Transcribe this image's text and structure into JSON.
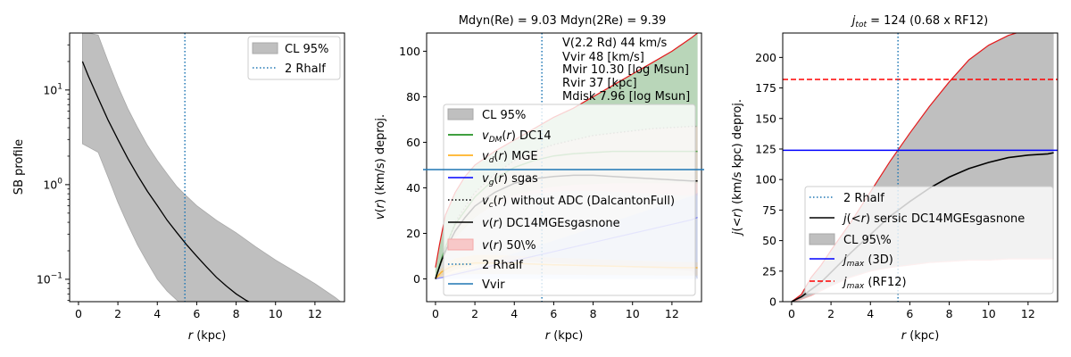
{
  "colors": {
    "ci_fill": "#bfbfbf",
    "ci_edge": "#a8a8a8",
    "rhalf": "#1f77b4",
    "dm": "#008000",
    "mge": "#ffa500",
    "gas": "#0000ff",
    "total": "#000000",
    "upper": "#e41a1c",
    "vvir": "#1f77b4",
    "jmax3d": "#0000ff",
    "jmaxrf": "#ff0000"
  },
  "chart_data": [
    {
      "type": "area",
      "title": "",
      "xlabel": "r (kpc)",
      "ylabel": "SB profile",
      "yscale": "log",
      "xlim": [
        -0.45,
        13.5
      ],
      "ylim": [
        0.058,
        40
      ],
      "xticks": [
        0,
        2,
        4,
        6,
        8,
        10,
        12
      ],
      "yticks": [
        {
          "value": 0.1,
          "label": "10^{-1}"
        },
        {
          "value": 1,
          "label": "10^{0}"
        },
        {
          "value": 10,
          "label": "10^{1}"
        }
      ],
      "rhalf_x": 5.4,
      "legend": {
        "position": "top-right",
        "entries": [
          {
            "label": "CL 95%",
            "kind": "patch"
          },
          {
            "label": "2 Rhalf",
            "kind": "dotted"
          }
        ]
      },
      "series": [
        {
          "name": "SB",
          "x": [
            0.2,
            0.5,
            1,
            1.5,
            2,
            2.5,
            3,
            3.5,
            4,
            4.5,
            5,
            5.5,
            6,
            6.5,
            7,
            7.5,
            8,
            8.5,
            8.8
          ],
          "values": [
            20,
            14,
            8.2,
            4.8,
            3.0,
            1.9,
            1.25,
            0.85,
            0.6,
            0.42,
            0.31,
            0.23,
            0.175,
            0.135,
            0.105,
            0.085,
            0.07,
            0.06,
            0.056
          ]
        }
      ],
      "band": {
        "x": [
          0.2,
          0.5,
          1,
          1.5,
          2,
          2.5,
          3,
          3.5,
          4,
          4.5,
          5,
          5.5,
          6,
          7,
          8,
          9,
          10,
          11,
          12,
          13,
          13.3
        ],
        "lower": [
          2.7,
          2.5,
          2.2,
          1.2,
          0.65,
          0.38,
          0.23,
          0.15,
          0.1,
          0.075,
          0.06,
          0.05,
          0.045,
          0.035,
          0.03,
          0.03,
          0.03,
          0.03,
          0.03,
          0.03,
          0.03
        ],
        "upper": [
          40,
          40,
          38,
          20,
          11,
          6.4,
          4.0,
          2.6,
          1.8,
          1.3,
          0.95,
          0.75,
          0.6,
          0.42,
          0.31,
          0.22,
          0.16,
          0.12,
          0.09,
          0.065,
          0.058
        ]
      }
    },
    {
      "type": "line",
      "title": "Mdyn(Re) = 9.03  Mdyn(2Re) = 9.39",
      "xlabel": "r (kpc)",
      "ylabel": "v(r) (km/s) deproj.",
      "xlim": [
        -0.45,
        13.5
      ],
      "ylim": [
        -10,
        108
      ],
      "xticks": [
        0,
        2,
        4,
        6,
        8,
        10,
        12
      ],
      "yticks": [
        0,
        20,
        40,
        60,
        80,
        100
      ],
      "rhalf_x": 5.4,
      "vvir": 48,
      "annotations": [
        "V(2.2 Rd) 44 km/s",
        "Vvir 48 [km/s]",
        "Mvir 10.30 [log Msun]",
        "Rvir 37 [kpc]",
        "Mdisk 7.96 [log Msun]"
      ],
      "legend": {
        "position": "lower-right",
        "entries": [
          {
            "label": "CL 95%",
            "kind": "patch"
          },
          {
            "label": "v_{DM}(r) DC14",
            "kind": "solid",
            "color": "#008000"
          },
          {
            "label": "v_{d}(r) MGE",
            "kind": "solid",
            "color": "#ffa500"
          },
          {
            "label": "v_{g}(r) sgas",
            "kind": "solid",
            "color": "#0000ff"
          },
          {
            "label": "v_{c}(r) without ADC (DalcantonFull)",
            "kind": "dotted",
            "color": "#000000"
          },
          {
            "label": "v(r) DC14MGEsgasnone",
            "kind": "solid",
            "color": "#000000"
          },
          {
            "label": "v(r) 50\\%",
            "kind": "patch-red"
          },
          {
            "label": "2 Rhalf",
            "kind": "dotted",
            "color": "#1f77b4"
          },
          {
            "label": "Vvir",
            "kind": "solid",
            "color": "#1f77b4"
          }
        ]
      },
      "series": [
        {
          "name": "v_total",
          "x": [
            0,
            0.3,
            0.7,
            1,
            1.5,
            2,
            3,
            4,
            5,
            6,
            7,
            8,
            9,
            10,
            11,
            12,
            13,
            13.3
          ],
          "values": [
            0,
            8,
            16,
            21,
            27,
            32,
            38,
            42,
            44,
            45,
            45.5,
            45.5,
            45,
            44.5,
            44,
            43.5,
            43,
            43
          ]
        },
        {
          "name": "v_dm",
          "x": [
            0,
            0.5,
            1,
            2,
            3,
            4,
            5,
            6,
            7,
            8,
            9,
            10,
            11,
            12,
            13,
            13.3
          ],
          "values": [
            0,
            14,
            24,
            36,
            44,
            49,
            52,
            54,
            55,
            55.5,
            56,
            56,
            56,
            56,
            56,
            56
          ]
        },
        {
          "name": "v_c_noadc",
          "x": [
            0,
            1,
            2,
            3,
            4,
            5,
            6,
            7,
            8,
            9,
            10,
            11,
            12,
            13,
            13.3
          ],
          "values": [
            0,
            25,
            38,
            46,
            52,
            56,
            59,
            61,
            63,
            64,
            65,
            66,
            66.5,
            67,
            67
          ]
        },
        {
          "name": "v_d_mge",
          "x": [
            0,
            0.3,
            0.7,
            1,
            1.5,
            2,
            3,
            4,
            5,
            6,
            7,
            8,
            9,
            10,
            11,
            12,
            13,
            13.3
          ],
          "values": [
            0,
            3,
            5,
            6,
            6.5,
            7,
            7,
            6.8,
            6.5,
            6.2,
            6,
            5.8,
            5.6,
            5.4,
            5.2,
            5,
            4.9,
            4.9
          ]
        },
        {
          "name": "v_g_sgas",
          "x": [
            0,
            1,
            2,
            3,
            4,
            5,
            6,
            7,
            8,
            9,
            10,
            11,
            12,
            13,
            13.3
          ],
          "values": [
            0,
            2,
            4,
            6,
            8,
            10,
            12,
            14,
            16,
            18,
            20,
            22,
            24,
            26,
            27
          ]
        },
        {
          "name": "v_upper",
          "x": [
            0,
            0.2,
            0.5,
            1,
            1.5,
            2,
            3,
            4,
            5,
            6,
            7,
            8,
            9,
            10,
            11,
            12,
            13,
            13.3
          ],
          "values": [
            5,
            15,
            28,
            38,
            45,
            50,
            56,
            61,
            66,
            71,
            75,
            80,
            85,
            90,
            95,
            100,
            106,
            108
          ]
        }
      ],
      "band": {
        "x": [
          0,
          0.5,
          1,
          2,
          3,
          4,
          5,
          6,
          7,
          8,
          9,
          10,
          11,
          12,
          13,
          13.3
        ],
        "lower": [
          0,
          2,
          4,
          6,
          7,
          7.5,
          7.5,
          7,
          6.5,
          6,
          5.5,
          5,
          4.5,
          4,
          3.5,
          0
        ],
        "upper": [
          5,
          28,
          38,
          50,
          56,
          61,
          66,
          71,
          75,
          80,
          85,
          90,
          95,
          100,
          106,
          108
        ]
      }
    },
    {
      "type": "line",
      "title": "j_tot = 124 (0.68 x RF12)",
      "xlabel": "r (kpc)",
      "ylabel": "j(<r) (km/s kpc) deproj.",
      "xlim": [
        -0.45,
        13.5
      ],
      "ylim": [
        0,
        220
      ],
      "xticks": [
        0,
        2,
        4,
        6,
        8,
        10,
        12
      ],
      "yticks": [
        0,
        25,
        50,
        75,
        100,
        125,
        150,
        175,
        200
      ],
      "rhalf_x": 5.4,
      "jmax_3d": 124,
      "jmax_rf12": 182,
      "legend": {
        "position": "lower-right",
        "entries": [
          {
            "label": "2 Rhalf",
            "kind": "dotted",
            "color": "#1f77b4"
          },
          {
            "label": "j(<r) sersic DC14MGEsgasnone",
            "kind": "solid",
            "color": "#000000"
          },
          {
            "label": "CL 95\\%",
            "kind": "patch"
          },
          {
            "label": "j_max (3D)",
            "kind": "solid",
            "color": "#0000ff"
          },
          {
            "label": "j_max (RF12)",
            "kind": "dashed",
            "color": "#ff0000"
          }
        ]
      },
      "series": [
        {
          "name": "j_median",
          "x": [
            0,
            0.5,
            1,
            1.5,
            2,
            3,
            4,
            5,
            6,
            7,
            8,
            9,
            10,
            11,
            12,
            13,
            13.3
          ],
          "values": [
            0,
            4,
            10,
            16,
            24,
            40,
            55,
            70,
            82,
            93,
            102,
            109,
            114,
            118,
            120,
            121,
            122
          ]
        },
        {
          "name": "j_upper",
          "x": [
            0,
            0.5,
            1,
            1.5,
            2,
            3,
            4,
            5,
            6,
            7,
            8,
            9,
            10,
            11,
            11.4
          ],
          "values": [
            0,
            6,
            20,
            30,
            42,
            65,
            90,
            115,
            138,
            160,
            180,
            198,
            210,
            218,
            220
          ]
        },
        {
          "name": "j_lower",
          "x": [
            0,
            0.5,
            1,
            1.5,
            2,
            3,
            4,
            5,
            6,
            7,
            8,
            9,
            10,
            11,
            12,
            13,
            13.3
          ],
          "values": [
            0,
            2,
            5,
            9,
            13,
            20,
            25,
            28,
            30,
            32,
            33,
            34,
            34,
            35,
            35,
            35,
            35
          ]
        }
      ],
      "band": {
        "x": [
          0,
          0.5,
          1,
          1.5,
          2,
          3,
          4,
          5,
          6,
          7,
          8,
          9,
          10,
          11,
          11.4,
          12,
          13,
          13.3
        ],
        "lower": [
          0,
          2,
          5,
          9,
          13,
          20,
          25,
          28,
          30,
          32,
          33,
          34,
          34,
          35,
          35,
          35,
          35,
          35
        ],
        "upper": [
          0,
          6,
          20,
          30,
          42,
          65,
          90,
          115,
          138,
          160,
          180,
          198,
          210,
          218,
          220,
          220,
          220,
          220
        ]
      }
    }
  ]
}
